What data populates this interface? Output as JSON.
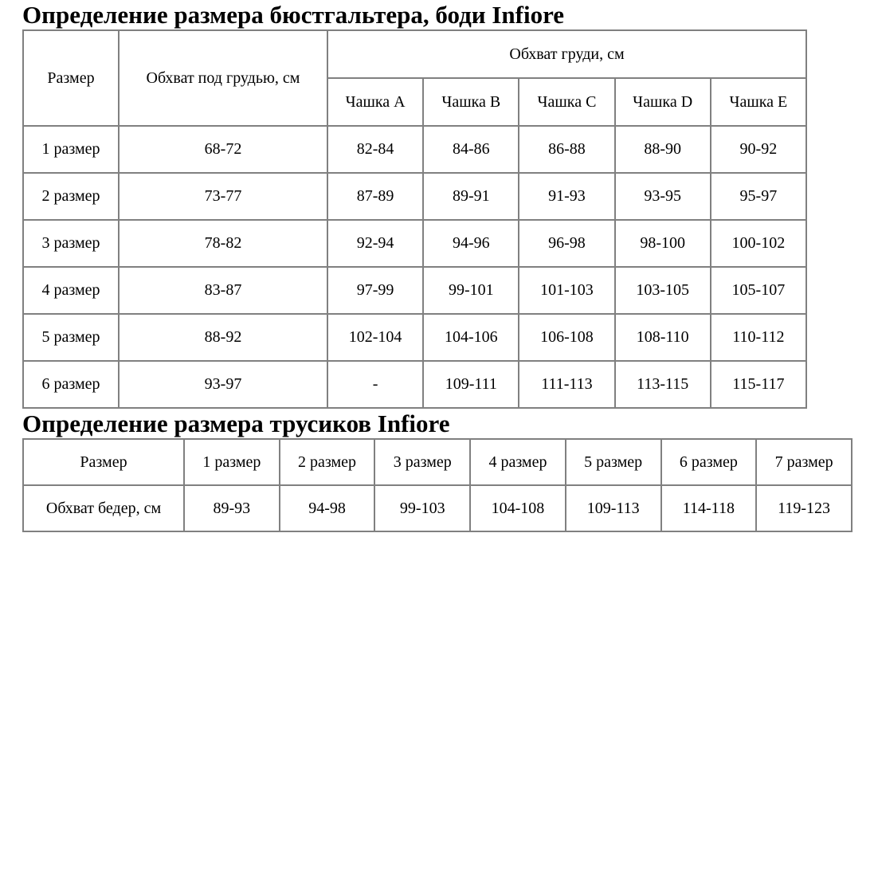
{
  "page": {
    "background": "#ffffff",
    "text_color": "#000000",
    "table_border_color": "#808080"
  },
  "bra_section": {
    "title": "Определение размера бюстгальтера, боди Infiore",
    "table": {
      "col1_header": "Размер",
      "col2_header": "Обхват под грудью, см",
      "group_header": "Обхват груди, см",
      "cup_headers": [
        "Чашка A",
        "Чашка B",
        "Чашка C",
        "Чашка D",
        "Чашка E"
      ],
      "rows": [
        {
          "size": "1 размер",
          "underbust": "68-72",
          "cups": [
            "82-84",
            "84-86",
            "86-88",
            "88-90",
            "90-92"
          ]
        },
        {
          "size": "2 размер",
          "underbust": "73-77",
          "cups": [
            "87-89",
            "89-91",
            "91-93",
            "93-95",
            "95-97"
          ]
        },
        {
          "size": "3 размер",
          "underbust": "78-82",
          "cups": [
            "92-94",
            "94-96",
            "96-98",
            "98-100",
            "100-102"
          ]
        },
        {
          "size": "4 размер",
          "underbust": "83-87",
          "cups": [
            "97-99",
            "99-101",
            "101-103",
            "103-105",
            "105-107"
          ]
        },
        {
          "size": "5 размер",
          "underbust": "88-92",
          "cups": [
            "102-104",
            "104-106",
            "106-108",
            "108-110",
            "110-112"
          ]
        },
        {
          "size": "6 размер",
          "underbust": "93-97",
          "cups": [
            "-",
            "109-111",
            "111-113",
            "113-115",
            "115-117"
          ]
        }
      ]
    }
  },
  "panties_section": {
    "title": "Определение размера трусиков Infiore",
    "table": {
      "headers": [
        "Размер",
        "1 размер",
        "2 размер",
        "3 размер",
        "4 размер",
        "5 размер",
        "6 размер",
        "7 размер"
      ],
      "row_label": "Обхват бедер, см",
      "values": [
        "89-93",
        "94-98",
        "99-103",
        "104-108",
        "109-113",
        "114-118",
        "119-123"
      ]
    }
  }
}
